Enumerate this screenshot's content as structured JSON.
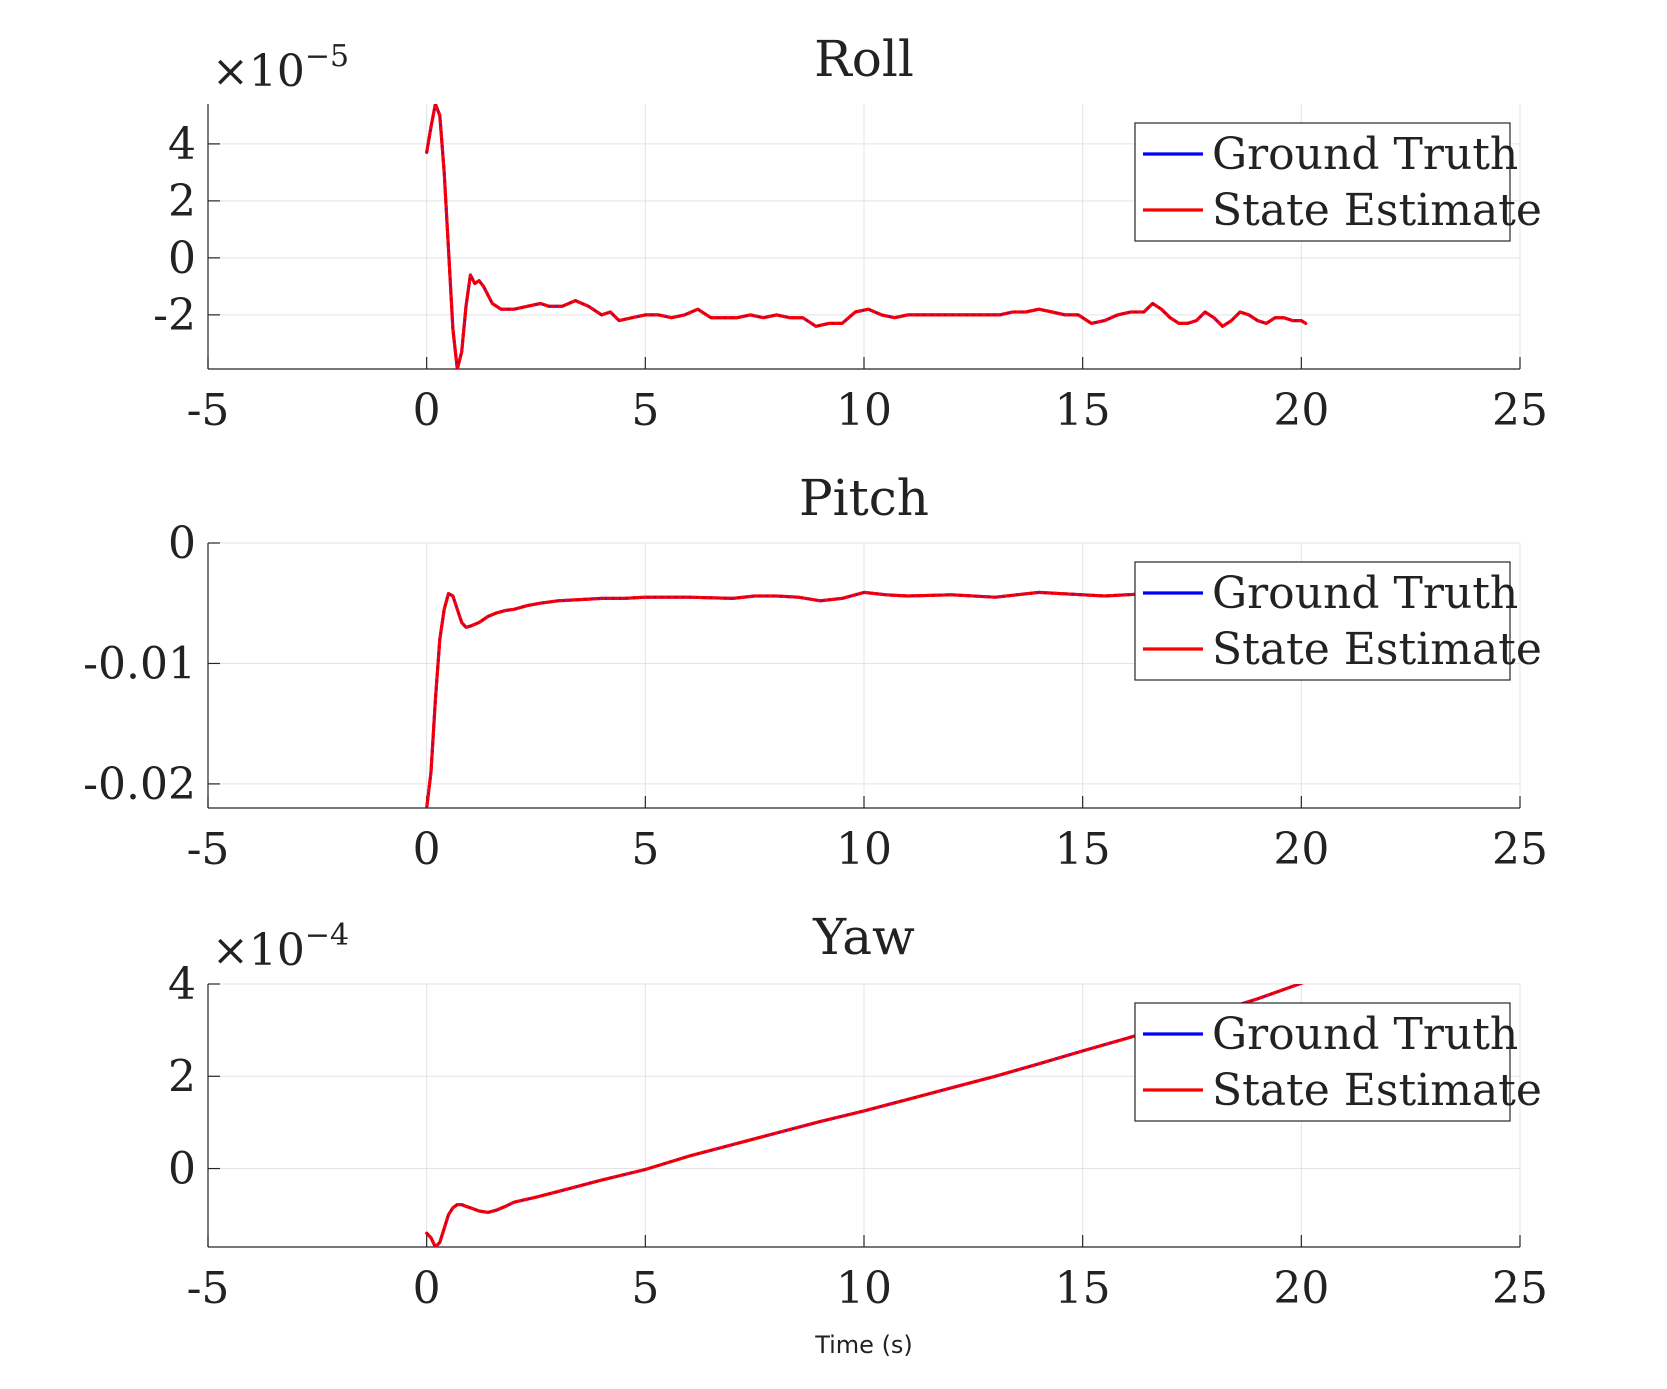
{
  "chart_data": [
    {
      "type": "line",
      "title": "Roll",
      "exponent_label": "×10",
      "exponent_power": "−5",
      "xlabel": "",
      "ylabel": "",
      "xlim": [
        -5,
        25
      ],
      "ylim": [
        -3.9,
        5.4
      ],
      "xticks": [
        -5,
        0,
        5,
        10,
        15,
        20,
        25
      ],
      "xtick_labels": [
        "-5",
        "0",
        "5",
        "10",
        "15",
        "20",
        "25"
      ],
      "yticks": [
        4,
        2,
        0,
        -2
      ],
      "ytick_labels": [
        "4",
        "2",
        "0",
        "-2"
      ],
      "grid": true,
      "legend_position": "top-right",
      "series": [
        {
          "name": "Ground Truth",
          "color": "#0000ff",
          "x": [
            0.0,
            0.1,
            0.2,
            0.3,
            0.4,
            0.5,
            0.6,
            0.7,
            0.8,
            0.9,
            1.0,
            1.1,
            1.2,
            1.3,
            1.5,
            1.7,
            2.0,
            2.3,
            2.6,
            2.8,
            3.1,
            3.4,
            3.7,
            4.0,
            4.2,
            4.4,
            4.7,
            5.0,
            5.3,
            5.6,
            5.9,
            6.2,
            6.5,
            6.8,
            7.1,
            7.4,
            7.7,
            8.0,
            8.3,
            8.6,
            8.9,
            9.2,
            9.5,
            9.8,
            10.1,
            10.4,
            10.7,
            11.0,
            11.3,
            11.6,
            11.9,
            12.2,
            12.5,
            12.8,
            13.1,
            13.4,
            13.7,
            14.0,
            14.3,
            14.6,
            14.9,
            15.2,
            15.5,
            15.8,
            16.1,
            16.4,
            16.6,
            16.8,
            17.0,
            17.2,
            17.4,
            17.6,
            17.8,
            18.0,
            18.2,
            18.4,
            18.6,
            18.8,
            19.0,
            19.2,
            19.4,
            19.6,
            19.8,
            20.0,
            20.1
          ],
          "y": [
            3.7,
            4.6,
            5.4,
            5.0,
            3.0,
            0.3,
            -2.5,
            -3.9,
            -3.3,
            -1.7,
            -0.6,
            -0.9,
            -0.8,
            -1.0,
            -1.6,
            -1.8,
            -1.8,
            -1.7,
            -1.6,
            -1.7,
            -1.7,
            -1.5,
            -1.7,
            -2.0,
            -1.9,
            -2.2,
            -2.1,
            -2.0,
            -2.0,
            -2.1,
            -2.0,
            -1.8,
            -2.1,
            -2.1,
            -2.1,
            -2.0,
            -2.1,
            -2.0,
            -2.1,
            -2.1,
            -2.4,
            -2.3,
            -2.3,
            -1.9,
            -1.8,
            -2.0,
            -2.1,
            -2.0,
            -2.0,
            -2.0,
            -2.0,
            -2.0,
            -2.0,
            -2.0,
            -2.0,
            -1.9,
            -1.9,
            -1.8,
            -1.9,
            -2.0,
            -2.0,
            -2.3,
            -2.2,
            -2.0,
            -1.9,
            -1.9,
            -1.6,
            -1.8,
            -2.1,
            -2.3,
            -2.3,
            -2.2,
            -1.9,
            -2.1,
            -2.4,
            -2.2,
            -1.9,
            -2.0,
            -2.2,
            -2.3,
            -2.1,
            -2.1,
            -2.2,
            -2.2,
            -2.3
          ]
        },
        {
          "name": "State Estimate",
          "color": "#ff0000",
          "x": [
            0.0,
            0.1,
            0.2,
            0.3,
            0.4,
            0.5,
            0.6,
            0.7,
            0.8,
            0.9,
            1.0,
            1.1,
            1.2,
            1.3,
            1.5,
            1.7,
            2.0,
            2.3,
            2.6,
            2.8,
            3.1,
            3.4,
            3.7,
            4.0,
            4.2,
            4.4,
            4.7,
            5.0,
            5.3,
            5.6,
            5.9,
            6.2,
            6.5,
            6.8,
            7.1,
            7.4,
            7.7,
            8.0,
            8.3,
            8.6,
            8.9,
            9.2,
            9.5,
            9.8,
            10.1,
            10.4,
            10.7,
            11.0,
            11.3,
            11.6,
            11.9,
            12.2,
            12.5,
            12.8,
            13.1,
            13.4,
            13.7,
            14.0,
            14.3,
            14.6,
            14.9,
            15.2,
            15.5,
            15.8,
            16.1,
            16.4,
            16.6,
            16.8,
            17.0,
            17.2,
            17.4,
            17.6,
            17.8,
            18.0,
            18.2,
            18.4,
            18.6,
            18.8,
            19.0,
            19.2,
            19.4,
            19.6,
            19.8,
            20.0,
            20.1
          ],
          "y": [
            3.7,
            4.6,
            5.4,
            5.0,
            3.0,
            0.3,
            -2.5,
            -3.9,
            -3.3,
            -1.7,
            -0.6,
            -0.9,
            -0.8,
            -1.0,
            -1.6,
            -1.8,
            -1.8,
            -1.7,
            -1.6,
            -1.7,
            -1.7,
            -1.5,
            -1.7,
            -2.0,
            -1.9,
            -2.2,
            -2.1,
            -2.0,
            -2.0,
            -2.1,
            -2.0,
            -1.8,
            -2.1,
            -2.1,
            -2.1,
            -2.0,
            -2.1,
            -2.0,
            -2.1,
            -2.1,
            -2.4,
            -2.3,
            -2.3,
            -1.9,
            -1.8,
            -2.0,
            -2.1,
            -2.0,
            -2.0,
            -2.0,
            -2.0,
            -2.0,
            -2.0,
            -2.0,
            -2.0,
            -1.9,
            -1.9,
            -1.8,
            -1.9,
            -2.0,
            -2.0,
            -2.3,
            -2.2,
            -2.0,
            -1.9,
            -1.9,
            -1.6,
            -1.8,
            -2.1,
            -2.3,
            -2.3,
            -2.2,
            -1.9,
            -2.1,
            -2.4,
            -2.2,
            -1.9,
            -2.0,
            -2.2,
            -2.3,
            -2.1,
            -2.1,
            -2.2,
            -2.2,
            -2.3
          ]
        }
      ]
    },
    {
      "type": "line",
      "title": "Pitch",
      "exponent_label": "",
      "exponent_power": "",
      "xlabel": "",
      "ylabel": "",
      "xlim": [
        -5,
        25
      ],
      "ylim": [
        -0.022,
        0.0
      ],
      "xticks": [
        -5,
        0,
        5,
        10,
        15,
        20,
        25
      ],
      "xtick_labels": [
        "-5",
        "0",
        "5",
        "10",
        "15",
        "20",
        "25"
      ],
      "yticks": [
        0,
        -0.01,
        -0.02
      ],
      "ytick_labels": [
        "0",
        "-0.01",
        "-0.02"
      ],
      "grid": true,
      "legend_position": "top-right",
      "series": [
        {
          "name": "Ground Truth",
          "color": "#0000ff",
          "x": [
            0.0,
            0.1,
            0.2,
            0.3,
            0.4,
            0.5,
            0.6,
            0.7,
            0.8,
            0.9,
            1.0,
            1.2,
            1.4,
            1.6,
            1.8,
            2.0,
            2.3,
            2.6,
            3.0,
            3.5,
            4.0,
            4.5,
            5.0,
            6.0,
            7.0,
            7.5,
            8.0,
            8.5,
            9.0,
            9.5,
            10.0,
            10.5,
            11.0,
            12.0,
            13.0,
            13.5,
            14.0,
            14.5,
            15.0,
            15.5,
            16.0,
            16.5
          ],
          "y": [
            -0.022,
            -0.019,
            -0.013,
            -0.008,
            -0.0055,
            -0.0042,
            -0.0044,
            -0.0055,
            -0.0066,
            -0.007,
            -0.0069,
            -0.0066,
            -0.0061,
            -0.0058,
            -0.0056,
            -0.0055,
            -0.0052,
            -0.005,
            -0.0048,
            -0.0047,
            -0.0046,
            -0.0046,
            -0.0045,
            -0.0045,
            -0.0046,
            -0.0044,
            -0.0044,
            -0.0045,
            -0.0048,
            -0.0046,
            -0.0041,
            -0.0043,
            -0.0044,
            -0.0043,
            -0.0045,
            -0.0043,
            -0.0041,
            -0.0042,
            -0.0043,
            -0.0044,
            -0.0043,
            -0.0042
          ]
        },
        {
          "name": "State Estimate",
          "color": "#ff0000",
          "x": [
            0.0,
            0.1,
            0.2,
            0.3,
            0.4,
            0.5,
            0.6,
            0.7,
            0.8,
            0.9,
            1.0,
            1.2,
            1.4,
            1.6,
            1.8,
            2.0,
            2.3,
            2.6,
            3.0,
            3.5,
            4.0,
            4.5,
            5.0,
            6.0,
            7.0,
            7.5,
            8.0,
            8.5,
            9.0,
            9.5,
            10.0,
            10.5,
            11.0,
            12.0,
            13.0,
            13.5,
            14.0,
            14.5,
            15.0,
            15.5,
            16.0,
            16.5
          ],
          "y": [
            -0.022,
            -0.019,
            -0.013,
            -0.008,
            -0.0055,
            -0.0042,
            -0.0044,
            -0.0055,
            -0.0066,
            -0.007,
            -0.0069,
            -0.0066,
            -0.0061,
            -0.0058,
            -0.0056,
            -0.0055,
            -0.0052,
            -0.005,
            -0.0048,
            -0.0047,
            -0.0046,
            -0.0046,
            -0.0045,
            -0.0045,
            -0.0046,
            -0.0044,
            -0.0044,
            -0.0045,
            -0.0048,
            -0.0046,
            -0.0041,
            -0.0043,
            -0.0044,
            -0.0043,
            -0.0045,
            -0.0043,
            -0.0041,
            -0.0042,
            -0.0043,
            -0.0044,
            -0.0043,
            -0.0042
          ]
        }
      ]
    },
    {
      "type": "line",
      "title": "Yaw",
      "exponent_label": "×10",
      "exponent_power": "−4",
      "xlabel": "Time (s)",
      "ylabel": "",
      "xlim": [
        -5,
        25
      ],
      "ylim": [
        -1.7,
        4.0
      ],
      "xticks": [
        -5,
        0,
        5,
        10,
        15,
        20,
        25
      ],
      "xtick_labels": [
        "-5",
        "0",
        "5",
        "10",
        "15",
        "20",
        "25"
      ],
      "yticks": [
        4,
        2,
        0
      ],
      "ytick_labels": [
        "4",
        "2",
        "0"
      ],
      "grid": true,
      "legend_position": "top-right",
      "series": [
        {
          "name": "Ground Truth",
          "color": "#0000ff",
          "x": [
            0.0,
            0.1,
            0.2,
            0.3,
            0.4,
            0.5,
            0.6,
            0.7,
            0.8,
            0.9,
            1.0,
            1.2,
            1.4,
            1.6,
            1.8,
            2.0,
            2.5,
            3.0,
            4.0,
            5.0,
            6.0,
            7.0,
            8.0,
            9.0,
            10.0,
            11.0,
            12.0,
            13.0,
            14.0,
            15.0,
            16.0,
            17.0,
            18.0,
            19.0,
            20.1
          ],
          "y": [
            -1.4,
            -1.5,
            -1.7,
            -1.6,
            -1.3,
            -1.0,
            -0.85,
            -0.78,
            -0.78,
            -0.82,
            -0.85,
            -0.92,
            -0.95,
            -0.9,
            -0.82,
            -0.73,
            -0.62,
            -0.5,
            -0.25,
            -0.02,
            0.27,
            0.52,
            0.77,
            1.02,
            1.25,
            1.5,
            1.75,
            2.0,
            2.27,
            2.55,
            2.82,
            3.1,
            3.38,
            3.68,
            4.05
          ]
        },
        {
          "name": "State Estimate",
          "color": "#ff0000",
          "x": [
            0.0,
            0.1,
            0.2,
            0.3,
            0.4,
            0.5,
            0.6,
            0.7,
            0.8,
            0.9,
            1.0,
            1.2,
            1.4,
            1.6,
            1.8,
            2.0,
            2.5,
            3.0,
            4.0,
            5.0,
            6.0,
            7.0,
            8.0,
            9.0,
            10.0,
            11.0,
            12.0,
            13.0,
            14.0,
            15.0,
            16.0,
            17.0,
            18.0,
            19.0,
            20.1
          ],
          "y": [
            -1.4,
            -1.5,
            -1.7,
            -1.6,
            -1.3,
            -1.0,
            -0.85,
            -0.78,
            -0.78,
            -0.82,
            -0.85,
            -0.92,
            -0.95,
            -0.9,
            -0.82,
            -0.73,
            -0.62,
            -0.5,
            -0.25,
            -0.02,
            0.27,
            0.52,
            0.77,
            1.02,
            1.25,
            1.5,
            1.75,
            2.0,
            2.27,
            2.55,
            2.82,
            3.1,
            3.38,
            3.68,
            4.05
          ]
        }
      ]
    }
  ]
}
